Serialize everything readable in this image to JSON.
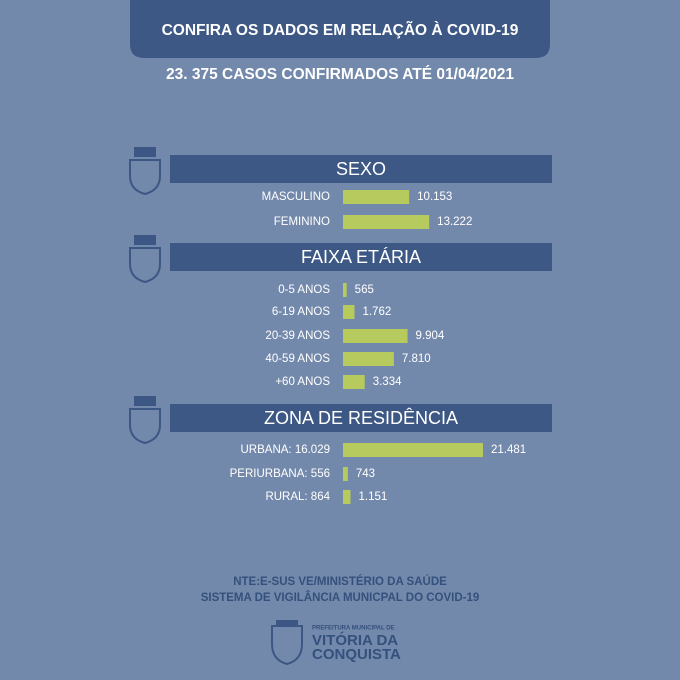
{
  "header": {
    "title": "CONFIRA OS DADOS EM RELAÇÃO À COVID-19",
    "subtitle": "23. 375 CASOS CONFIRMADOS ATÉ 01/04/2021"
  },
  "chart_data": [
    {
      "type": "bar",
      "title": "SEXO",
      "categories": [
        "MASCULINO",
        "FEMININO"
      ],
      "values": [
        10153,
        13222
      ],
      "value_labels": [
        "10.153",
        "13.222"
      ],
      "color": "#b6ca5e"
    },
    {
      "type": "bar",
      "title": "FAIXA ETÁRIA",
      "categories": [
        "0-5 ANOS",
        "6-19 ANOS",
        "20-39 ANOS",
        "40-59 ANOS",
        "+60 ANOS"
      ],
      "values": [
        565,
        1762,
        9904,
        7810,
        3334
      ],
      "value_labels": [
        "565",
        "1.762",
        "9.904",
        "7.810",
        "3.334"
      ],
      "color": "#b6ca5e"
    },
    {
      "type": "bar",
      "title": "ZONA DE RESIDÊNCIA",
      "categories": [
        "URBANA: 16.029",
        "PERIURBANA: 556",
        "RURAL: 864"
      ],
      "values": [
        21481,
        743,
        1151
      ],
      "value_labels": [
        "21.481",
        "743",
        "1.151"
      ],
      "color": "#b6ca5e"
    }
  ],
  "footer": {
    "source": "NTE:E-SUS VE/MINISTÉRIO DA SAÚDE",
    "system": "SISTEMA DE VIGILÂNCIA MUNICPAL DO COVID-19",
    "logo": {
      "top": "PREFEITURA MUNICIPAL DE",
      "line1": "VITÓRIA DA",
      "line2": "CONQUISTA"
    }
  }
}
